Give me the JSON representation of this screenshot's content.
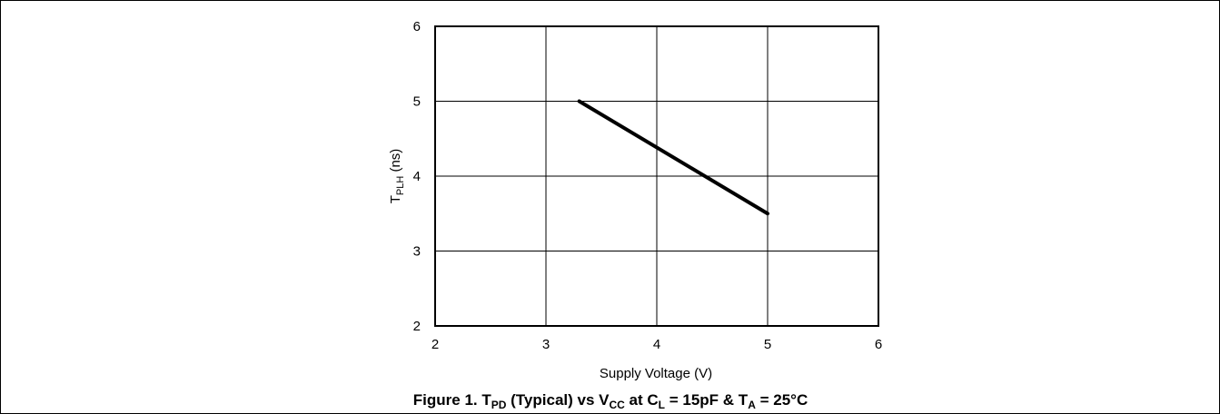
{
  "chart_data": {
    "type": "line",
    "title": "",
    "xlabel": "Supply Voltage (V)",
    "ylabel_main": "T",
    "ylabel_sub": "PLH",
    "ylabel_tail": " (ns)",
    "xlim": [
      2,
      6
    ],
    "ylim": [
      2,
      6
    ],
    "x_ticks": [
      2,
      3,
      4,
      5,
      6
    ],
    "y_ticks": [
      2,
      3,
      4,
      5,
      6
    ],
    "grid": true,
    "series": [
      {
        "x": [
          3.3,
          5.0
        ],
        "y": [
          5.0,
          3.5
        ]
      }
    ]
  },
  "caption": {
    "p1": "Figure 1. T",
    "s1": "PD",
    "p2": " (Typical) vs V",
    "s2": "CC",
    "p3": " at C",
    "s3": "L",
    "p4": " = 15pF & T",
    "s4": "A",
    "p5": " = 25°C"
  },
  "colors": {
    "line": "#000000",
    "grid": "#000000"
  }
}
